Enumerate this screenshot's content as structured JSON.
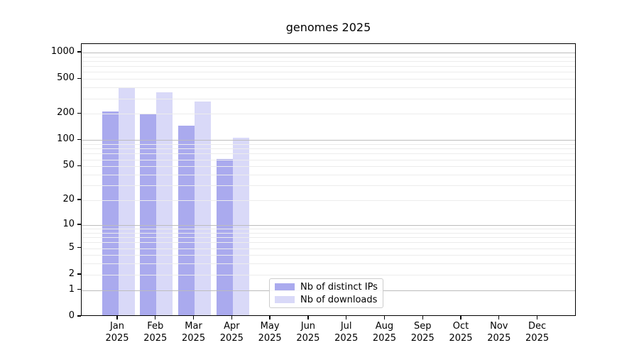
{
  "chart_data": {
    "type": "bar",
    "title": "genomes 2025",
    "categories": [
      {
        "month": "Jan",
        "year": "2025"
      },
      {
        "month": "Feb",
        "year": "2025"
      },
      {
        "month": "Mar",
        "year": "2025"
      },
      {
        "month": "Apr",
        "year": "2025"
      },
      {
        "month": "May",
        "year": "2025"
      },
      {
        "month": "Jun",
        "year": "2025"
      },
      {
        "month": "Jul",
        "year": "2025"
      },
      {
        "month": "Aug",
        "year": "2025"
      },
      {
        "month": "Sep",
        "year": "2025"
      },
      {
        "month": "Oct",
        "year": "2025"
      },
      {
        "month": "Nov",
        "year": "2025"
      },
      {
        "month": "Dec",
        "year": "2025"
      }
    ],
    "series": [
      {
        "name": "Nb of distinct IPs",
        "color": "#aaaaee",
        "values": [
          205,
          190,
          141,
          59,
          0,
          0,
          0,
          0,
          0,
          0,
          0,
          0
        ]
      },
      {
        "name": "Nb of downloads",
        "color": "#d9d9f8",
        "values": [
          387,
          339,
          269,
          102,
          0,
          0,
          0,
          0,
          0,
          0,
          0,
          0
        ]
      }
    ],
    "y_axis": {
      "scale": "log10(1+x)",
      "ticks": [
        1000,
        500,
        200,
        100,
        50,
        20,
        10,
        5,
        2,
        1,
        0
      ],
      "major_grid_values": [
        1,
        10,
        100,
        1000
      ],
      "minor_grid_values": [
        2,
        3,
        4,
        5,
        6,
        7,
        8,
        9,
        20,
        30,
        40,
        50,
        60,
        70,
        80,
        90,
        200,
        300,
        400,
        500,
        600,
        700,
        800,
        900
      ],
      "top_value": 1240
    },
    "legend_position": "lower center-left",
    "grid": true,
    "colors": {
      "major_grid": "#bcbcbc",
      "minor_grid": "#ececec",
      "axis": "#000000",
      "background": "#ffffff"
    }
  }
}
